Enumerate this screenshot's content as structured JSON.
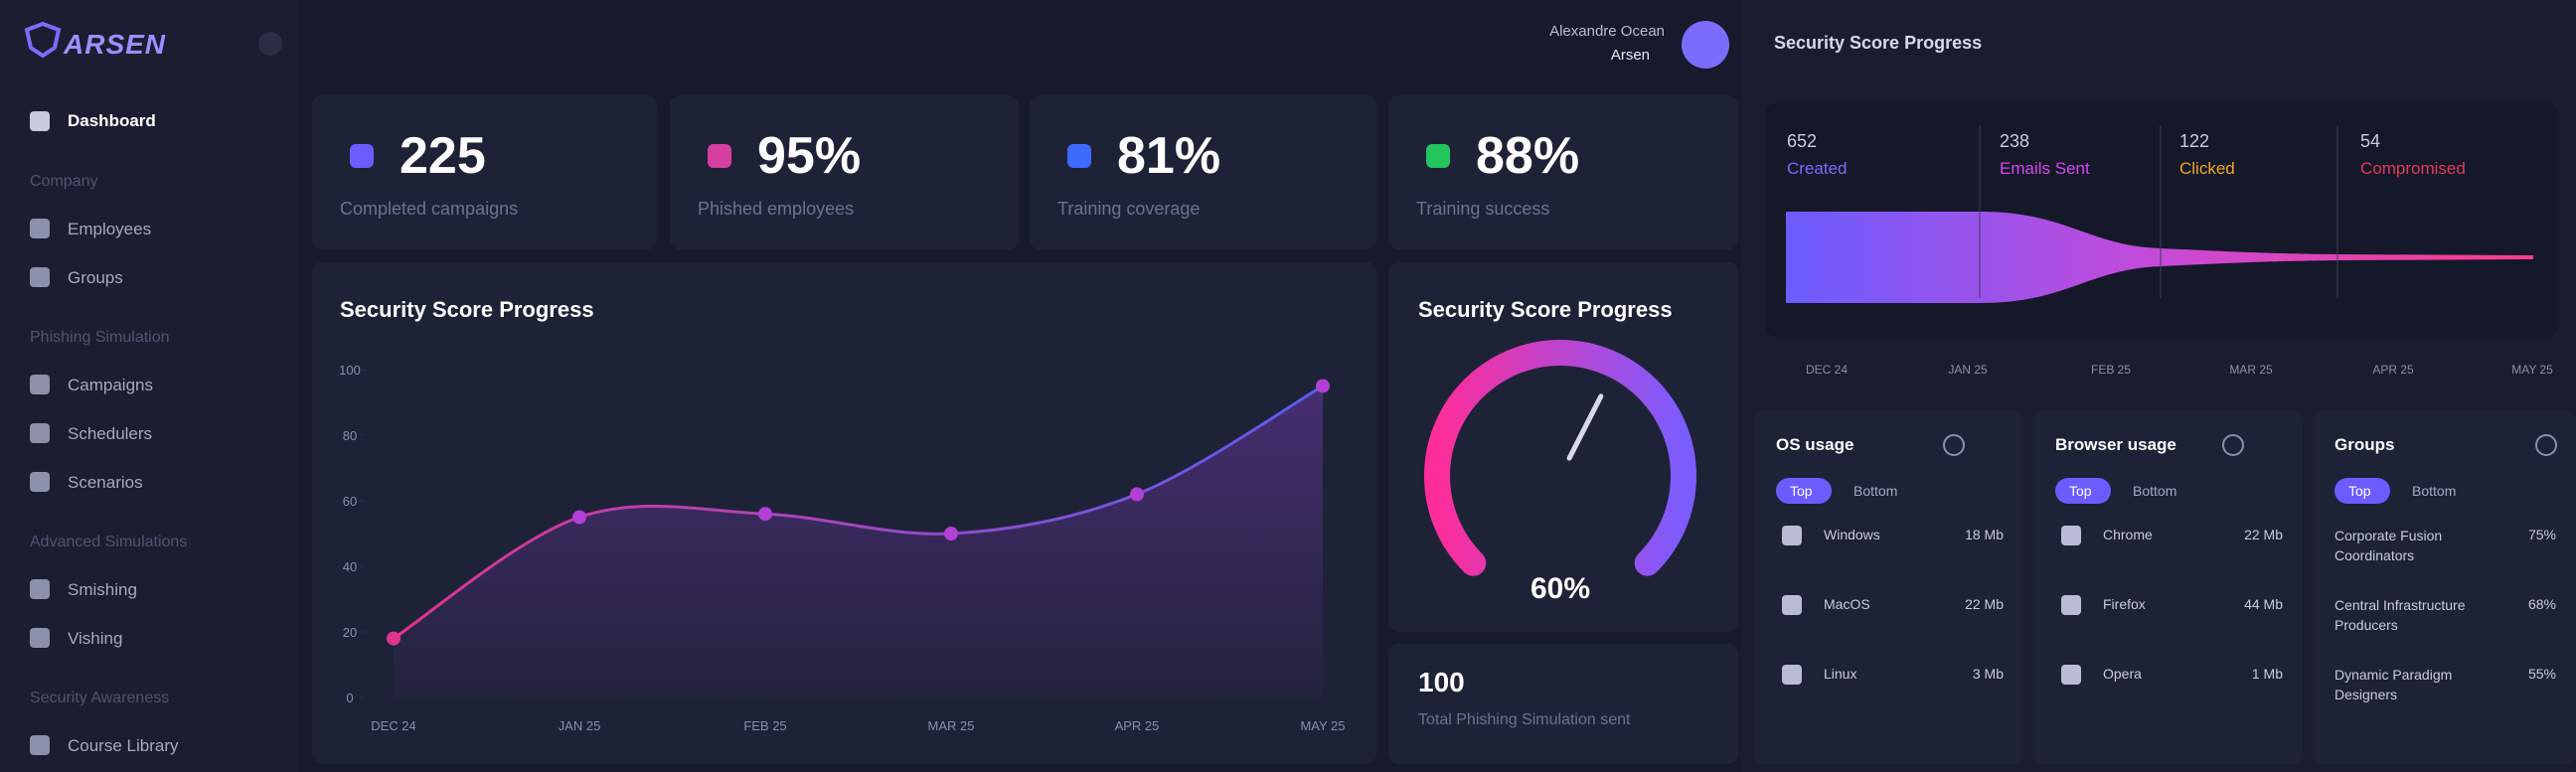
{
  "sidebar": {
    "logo": "ARSEN",
    "dashboard": "Dashboard",
    "sections": [
      {
        "title": "Company",
        "items": [
          "Employees",
          "Groups"
        ]
      },
      {
        "title": "Phishing Simulation",
        "items": [
          "Campaigns",
          "Schedulers",
          "Scenarios"
        ]
      },
      {
        "title": "Advanced Simulations",
        "items": [
          "Smishing",
          "Vishing"
        ]
      },
      {
        "title": "Security Awareness",
        "items": [
          "Course Library"
        ]
      }
    ]
  },
  "header": {
    "user": "Alexandre Ocean",
    "org": "Arsen"
  },
  "stats": [
    {
      "value": "225",
      "label": "Completed campaigns",
      "color": "#6c5cff"
    },
    {
      "value": "95%",
      "label": "Phished employees",
      "color": "#d63fa0"
    },
    {
      "value": "81%",
      "label": "Training coverage",
      "color": "#3d6bff"
    },
    {
      "value": "88%",
      "label": "Training success",
      "color": "#22c55e"
    }
  ],
  "chart_data": {
    "type": "line",
    "title": "Security Score Progress",
    "categories": [
      "DEC 24",
      "JAN 25",
      "FEB 25",
      "MAR 25",
      "APR 25",
      "MAY 25"
    ],
    "values": [
      18,
      55,
      56,
      50,
      62,
      95
    ],
    "ylim": [
      0,
      100
    ],
    "yticks": [
      0,
      20,
      40,
      60,
      80,
      100
    ],
    "color": "#b23fd6"
  },
  "gauge": {
    "title": "Security Score Progress",
    "value": 60,
    "value_label": "60%"
  },
  "phishing_total": {
    "value": "100",
    "label": "Total Phishing Simulation sent"
  },
  "funnel": {
    "title": "Security Score Progress",
    "stages": [
      {
        "value": "652",
        "label": "Created",
        "color": "#7b6cff"
      },
      {
        "value": "238",
        "label": "Emails Sent",
        "color": "#d946ef"
      },
      {
        "value": "122",
        "label": "Clicked",
        "color": "#f5a524"
      },
      {
        "value": "54",
        "label": "Compromised",
        "color": "#e23a5b"
      }
    ],
    "axis": [
      "DEC 24",
      "JAN 25",
      "FEB 25",
      "MAR 25",
      "APR 25",
      "MAY 25"
    ]
  },
  "os_usage": {
    "title": "OS usage",
    "tabs": [
      "Top",
      "Bottom"
    ],
    "rows": [
      {
        "name": "Windows",
        "size": "18 Mb"
      },
      {
        "name": "MacOS",
        "size": "22 Mb"
      },
      {
        "name": "Linux",
        "size": "3 Mb"
      }
    ]
  },
  "browser_usage": {
    "title": "Browser usage",
    "tabs": [
      "Top",
      "Bottom"
    ],
    "rows": [
      {
        "name": "Chrome",
        "size": "22 Mb"
      },
      {
        "name": "Firefox",
        "size": "44 Mb"
      },
      {
        "name": "Opera",
        "size": "1 Mb"
      }
    ]
  },
  "groups": {
    "title": "Groups",
    "tabs": [
      "Top",
      "Bottom"
    ],
    "rows": [
      {
        "name": "Corporate Fusion Coordinators",
        "size": "75%"
      },
      {
        "name": "Central Infrastructure Producers",
        "size": "68%"
      },
      {
        "name": "Dynamic Paradigm Designers",
        "size": "55%"
      }
    ]
  }
}
